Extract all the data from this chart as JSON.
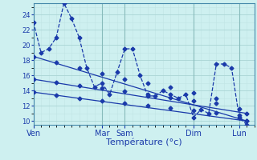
{
  "xlabel": "Température (°c)",
  "background_color": "#cef0f0",
  "grid_color_major": "#aad4d4",
  "grid_color_minor": "#c0e4e4",
  "line_color": "#1a3aaa",
  "ylim": [
    9.5,
    25.5
  ],
  "yticks": [
    10,
    12,
    14,
    16,
    18,
    20,
    22,
    24
  ],
  "day_labels": [
    "Ven",
    "Mar",
    "Sam",
    "Dim",
    "Lun"
  ],
  "day_positions": [
    0,
    9,
    12,
    21,
    27
  ],
  "xlim": [
    0,
    29
  ],
  "line1_x": [
    0,
    1,
    2,
    3,
    4,
    5,
    6,
    7,
    8,
    9,
    10,
    11,
    12,
    13,
    14,
    15,
    16,
    17,
    18,
    19,
    20,
    21,
    22,
    23,
    24,
    25,
    26,
    27,
    28
  ],
  "line1_y": [
    23,
    19,
    19.5,
    21,
    25.5,
    23.5,
    21,
    17,
    14.5,
    15,
    13.5,
    16.5,
    19.5,
    19.5,
    16,
    13.3,
    13.3,
    14,
    13.5,
    13.0,
    13.5,
    10.5,
    11.5,
    11.0,
    17.5,
    17.5,
    17.0,
    10.5,
    9.5
  ],
  "line2_x": [
    0,
    28
  ],
  "line2_y": [
    18.5,
    10.0
  ],
  "line3_x": [
    0,
    28
  ],
  "line3_y": [
    15.5,
    11.0
  ],
  "line4_x": [
    0,
    28
  ],
  "line4_y": [
    13.8,
    10.0
  ],
  "line2_markers_x": [
    0,
    3,
    6,
    9,
    12,
    15,
    18,
    21,
    24,
    27,
    28
  ],
  "line2_markers_y": [
    18.5,
    17.7,
    17.0,
    16.2,
    15.5,
    15.0,
    14.4,
    13.7,
    13.0,
    10.8,
    10.0
  ],
  "line3_markers_x": [
    0,
    3,
    6,
    9,
    12,
    15,
    18,
    21,
    24,
    27,
    28
  ],
  "line3_markers_y": [
    15.5,
    15.1,
    14.7,
    14.3,
    13.9,
    13.5,
    13.1,
    12.7,
    12.3,
    11.6,
    11.0
  ],
  "line4_markers_x": [
    0,
    3,
    6,
    9,
    12,
    15,
    18,
    21,
    24,
    27,
    28
  ],
  "line4_markers_y": [
    13.8,
    13.4,
    13.0,
    12.7,
    12.3,
    12.0,
    11.7,
    11.4,
    11.1,
    10.4,
    10.0
  ]
}
